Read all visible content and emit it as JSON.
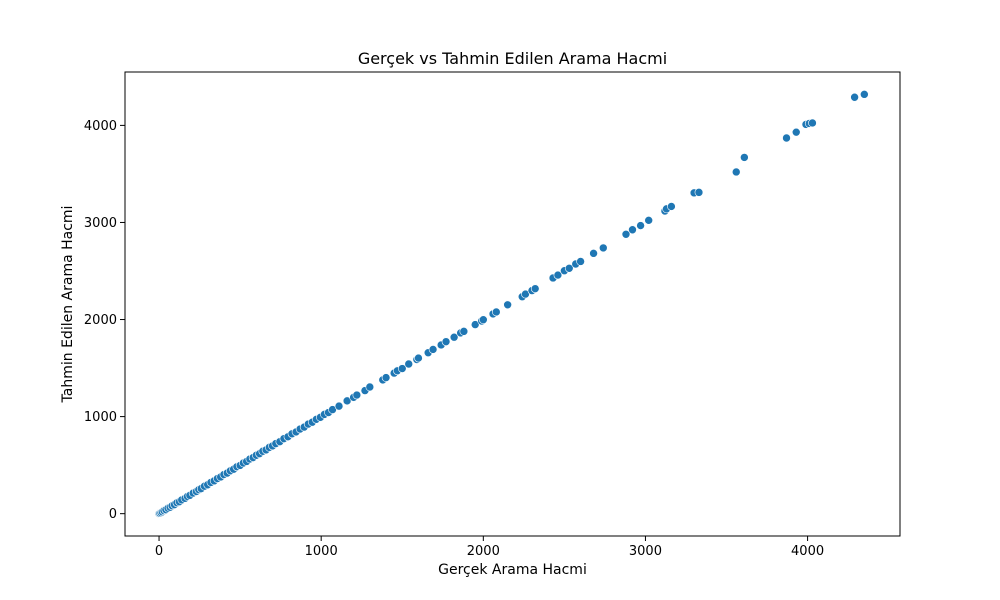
{
  "chart_data": {
    "type": "scatter",
    "title": "Gerçek vs Tahmin Edilen Arama Hacmi",
    "xlabel": "Gerçek Arama Hacmi",
    "ylabel": "Tahmin Edilen Arama Hacmi",
    "xlim": [
      -210,
      4570
    ],
    "ylim": [
      -230,
      4550
    ],
    "xticks": [
      0,
      1000,
      2000,
      3000,
      4000
    ],
    "yticks": [
      0,
      1000,
      2000,
      3000,
      4000
    ],
    "grid": false,
    "legend": "none",
    "marker_color": "#1f77b4",
    "marker_edge_color": "#ffffff",
    "points": [
      [
        0,
        0
      ],
      [
        5,
        4
      ],
      [
        12,
        11
      ],
      [
        20,
        19
      ],
      [
        30,
        31
      ],
      [
        42,
        40
      ],
      [
        55,
        56
      ],
      [
        68,
        66
      ],
      [
        80,
        81
      ],
      [
        95,
        93
      ],
      [
        110,
        112
      ],
      [
        125,
        123
      ],
      [
        140,
        142
      ],
      [
        160,
        158
      ],
      [
        175,
        177
      ],
      [
        190,
        189
      ],
      [
        210,
        212
      ],
      [
        230,
        228
      ],
      [
        245,
        247
      ],
      [
        260,
        258
      ],
      [
        280,
        283
      ],
      [
        300,
        298
      ],
      [
        320,
        322
      ],
      [
        340,
        338
      ],
      [
        360,
        362
      ],
      [
        380,
        378
      ],
      [
        400,
        403
      ],
      [
        420,
        418
      ],
      [
        440,
        442
      ],
      [
        460,
        458
      ],
      [
        480,
        483
      ],
      [
        500,
        497
      ],
      [
        520,
        522
      ],
      [
        540,
        538
      ],
      [
        560,
        563
      ],
      [
        580,
        578
      ],
      [
        600,
        602
      ],
      [
        620,
        618
      ],
      [
        640,
        643
      ],
      [
        660,
        657
      ],
      [
        680,
        683
      ],
      [
        700,
        698
      ],
      [
        720,
        722
      ],
      [
        745,
        742
      ],
      [
        770,
        773
      ],
      [
        795,
        792
      ],
      [
        820,
        823
      ],
      [
        845,
        842
      ],
      [
        870,
        872
      ],
      [
        895,
        892
      ],
      [
        920,
        923
      ],
      [
        945,
        942
      ],
      [
        970,
        972
      ],
      [
        995,
        992
      ],
      [
        1020,
        1023
      ],
      [
        1045,
        1042
      ],
      [
        1070,
        1072
      ],
      [
        1110,
        1108
      ],
      [
        1160,
        1162
      ],
      [
        1200,
        1198
      ],
      [
        1220,
        1222
      ],
      [
        1270,
        1268
      ],
      [
        1300,
        1305
      ],
      [
        1380,
        1378
      ],
      [
        1400,
        1402
      ],
      [
        1450,
        1448
      ],
      [
        1470,
        1472
      ],
      [
        1500,
        1495
      ],
      [
        1540,
        1542
      ],
      [
        1590,
        1588
      ],
      [
        1600,
        1603
      ],
      [
        1660,
        1658
      ],
      [
        1690,
        1692
      ],
      [
        1740,
        1738
      ],
      [
        1770,
        1772
      ],
      [
        1820,
        1818
      ],
      [
        1860,
        1862
      ],
      [
        1880,
        1878
      ],
      [
        1950,
        1948
      ],
      [
        1990,
        1985
      ],
      [
        2000,
        1998
      ],
      [
        2060,
        2058
      ],
      [
        2080,
        2078
      ],
      [
        2150,
        2152
      ],
      [
        2240,
        2235
      ],
      [
        2260,
        2262
      ],
      [
        2300,
        2298
      ],
      [
        2320,
        2318
      ],
      [
        2430,
        2428
      ],
      [
        2460,
        2458
      ],
      [
        2500,
        2503
      ],
      [
        2530,
        2528
      ],
      [
        2570,
        2572
      ],
      [
        2600,
        2598
      ],
      [
        2680,
        2682
      ],
      [
        2740,
        2738
      ],
      [
        2880,
        2878
      ],
      [
        2920,
        2925
      ],
      [
        2970,
        2968
      ],
      [
        3020,
        3022
      ],
      [
        3120,
        3118
      ],
      [
        3130,
        3140
      ],
      [
        3160,
        3165
      ],
      [
        3300,
        3305
      ],
      [
        3330,
        3310
      ],
      [
        3560,
        3520
      ],
      [
        3610,
        3670
      ],
      [
        3870,
        3870
      ],
      [
        3930,
        3930
      ],
      [
        3990,
        4010
      ],
      [
        4010,
        4020
      ],
      [
        4030,
        4025
      ],
      [
        4290,
        4290
      ],
      [
        4350,
        4320
      ]
    ]
  }
}
